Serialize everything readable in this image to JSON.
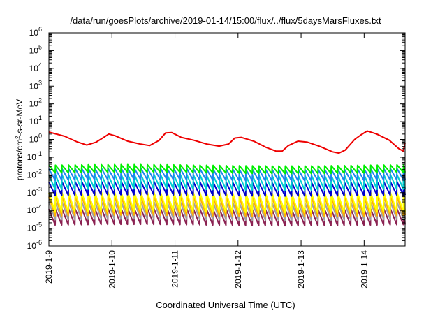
{
  "chart_data": {
    "type": "line",
    "title": "/data/run/goesPlots/archive/2019-01-14/15:00/flux/../flux/5daysMarsFluxes.txt",
    "xlabel": "Coordinated Universal Time (UTC)",
    "ylabel_prefix": "protons/cm",
    "ylabel_sup": "2",
    "ylabel_suffix": "-s-sr-MeV",
    "yscale": "log",
    "ylim_exp": [
      -6,
      6
    ],
    "ytick_base": "10",
    "ytick_exps": [
      "-6",
      "-5",
      "-4",
      "-3",
      "-2",
      "-1",
      "0",
      "1",
      "2",
      "3",
      "4",
      "5",
      "6"
    ],
    "xlim_days": [
      0,
      5.65
    ],
    "xticks": [
      {
        "day": 0,
        "label": "2019-1-9"
      },
      {
        "day": 1,
        "label": "2019-1-10"
      },
      {
        "day": 2,
        "label": "2019-1-11"
      },
      {
        "day": 3,
        "label": "2019-1-12"
      },
      {
        "day": 4,
        "label": "2019-1-13"
      },
      {
        "day": 5,
        "label": "2019-1-14"
      }
    ],
    "grid": false,
    "legend": "none",
    "cycles_per_day": 9.6,
    "series": [
      {
        "color": "#ee0000",
        "style": "envelope",
        "points": [
          [
            0,
            2.6
          ],
          [
            0.25,
            1.5
          ],
          [
            0.45,
            0.72
          ],
          [
            0.6,
            0.48
          ],
          [
            0.75,
            0.7
          ],
          [
            0.87,
            1.3
          ],
          [
            0.95,
            2.0
          ],
          [
            1.05,
            1.6
          ],
          [
            1.25,
            0.8
          ],
          [
            1.45,
            0.55
          ],
          [
            1.6,
            0.45
          ],
          [
            1.75,
            0.9
          ],
          [
            1.85,
            2.3
          ],
          [
            1.95,
            2.4
          ],
          [
            2.1,
            1.3
          ],
          [
            2.3,
            0.9
          ],
          [
            2.5,
            0.55
          ],
          [
            2.7,
            0.42
          ],
          [
            2.85,
            0.55
          ],
          [
            2.95,
            1.2
          ],
          [
            3.05,
            1.3
          ],
          [
            3.25,
            0.8
          ],
          [
            3.45,
            0.35
          ],
          [
            3.6,
            0.22
          ],
          [
            3.7,
            0.22
          ],
          [
            3.8,
            0.45
          ],
          [
            3.95,
            0.8
          ],
          [
            4.1,
            0.7
          ],
          [
            4.3,
            0.4
          ],
          [
            4.5,
            0.2
          ],
          [
            4.6,
            0.17
          ],
          [
            4.7,
            0.25
          ],
          [
            4.85,
            1.0
          ],
          [
            4.95,
            1.8
          ],
          [
            5.05,
            3.0
          ],
          [
            5.2,
            2.0
          ],
          [
            5.4,
            0.9
          ],
          [
            5.55,
            0.3
          ],
          [
            5.62,
            0.22
          ],
          [
            5.65,
            0.65
          ]
        ]
      },
      {
        "color": "#00ee00",
        "style": "sawtooth",
        "max": 0.035,
        "min": 0.013
      },
      {
        "color": "#1c86ee",
        "style": "sawtooth",
        "max": 0.022,
        "min": 0.005
      },
      {
        "color": "#00ced1",
        "style": "sawtooth",
        "max": 0.01,
        "min": 0.0015
      },
      {
        "color": "#0000cd",
        "style": "sawtooth",
        "max": 0.004,
        "min": 0.0007
      },
      {
        "color": "#ffff00",
        "style": "sawtooth",
        "max": 0.001,
        "min": 8e-05
      },
      {
        "color": "#ffb000",
        "style": "sawtooth",
        "max": 0.0006,
        "min": 5e-05
      },
      {
        "color": "#a0a0a0",
        "style": "sawtooth",
        "max": 0.0003,
        "min": 3e-05
      },
      {
        "color": "#8b2252",
        "style": "sawtooth",
        "max": 0.00012,
        "min": 1.5e-05
      }
    ]
  }
}
